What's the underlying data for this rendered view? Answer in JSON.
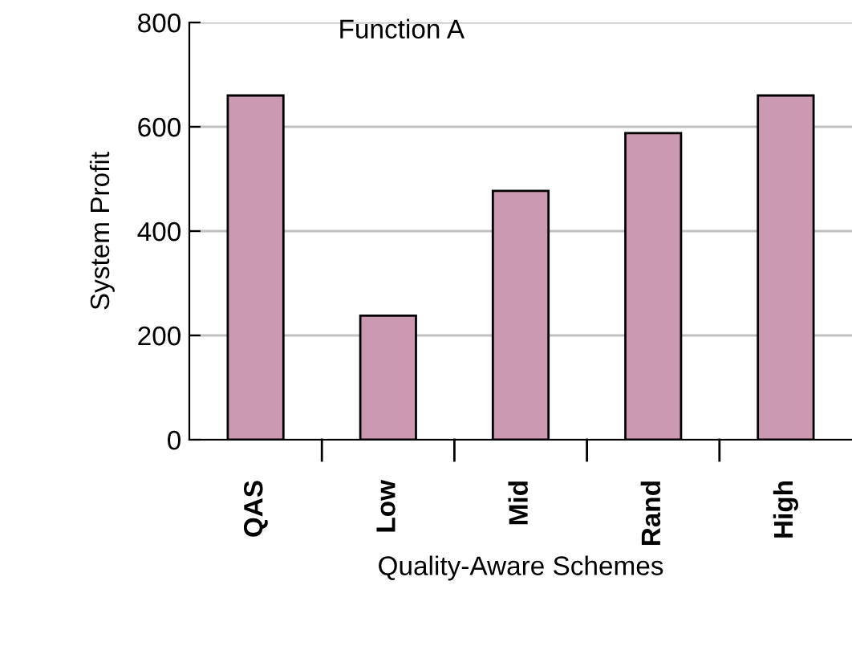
{
  "chart_data": {
    "type": "bar",
    "title": "Function A",
    "xlabel": "Quality-Aware Schemes",
    "ylabel": "System Profit",
    "categories": [
      "QAS",
      "Low",
      "Mid",
      "Rand",
      "High"
    ],
    "values": [
      660,
      238,
      477,
      588,
      660
    ],
    "color": "#cc99b2",
    "ylim": [
      0,
      800
    ],
    "yticks": [
      0,
      200,
      400,
      600,
      800
    ],
    "grid": "y",
    "legend": false
  }
}
